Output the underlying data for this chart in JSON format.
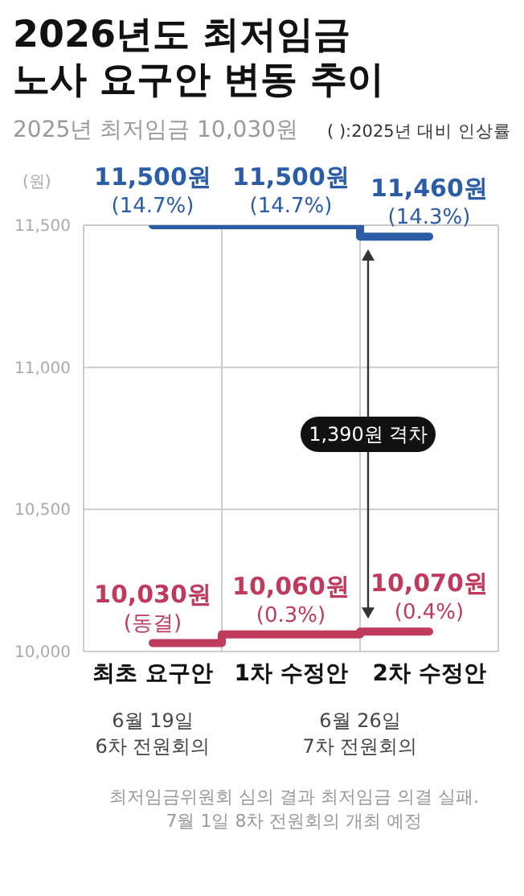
{
  "chart_data": {
    "type": "step",
    "title": "2026년도 최저임금\n노사 요구안 변동 추이",
    "subtitle": "2025년 최저임금 10,030원",
    "ylabel": "(원)",
    "categories": [
      "최초 요구안",
      "1차 수정안",
      "2차 수정안"
    ],
    "series": [
      {
        "color": "#2a5ca8",
        "values": [
          11500,
          11500,
          11460
        ],
        "value_labels": [
          "11,500원\n(14.7%)",
          "11,500원\n(14.7%)",
          "11,460원\n(14.3%)"
        ]
      },
      {
        "color": "#bf3a5c",
        "values": [
          10030,
          10060,
          10070
        ],
        "value_labels": [
          "10,030원\n(동결)",
          "10,060원\n(0.3%)",
          "10,070원\n(0.4%)"
        ]
      }
    ],
    "ylim": [
      10000,
      11500
    ],
    "yticks": [
      {
        "value": 10000,
        "label": "10,000"
      },
      {
        "value": 10500,
        "label": "10,500"
      },
      {
        "value": 11000,
        "label": "11,000"
      },
      {
        "value": 11500,
        "label": "11,500"
      }
    ],
    "grid": true,
    "legend": false,
    "marker": "none",
    "line_style": "solid",
    "annotations": [
      "( ):2025년 대비 인상률",
      "6월 19일\n6차 전원회의",
      "6월 26일\n7차 전원회의",
      "최저임금위원회 심의 결과 최저임금 의결 실패.\n7월 1일 8차 전원회의 개최 예정",
      "1,390원 격차"
    ]
  }
}
